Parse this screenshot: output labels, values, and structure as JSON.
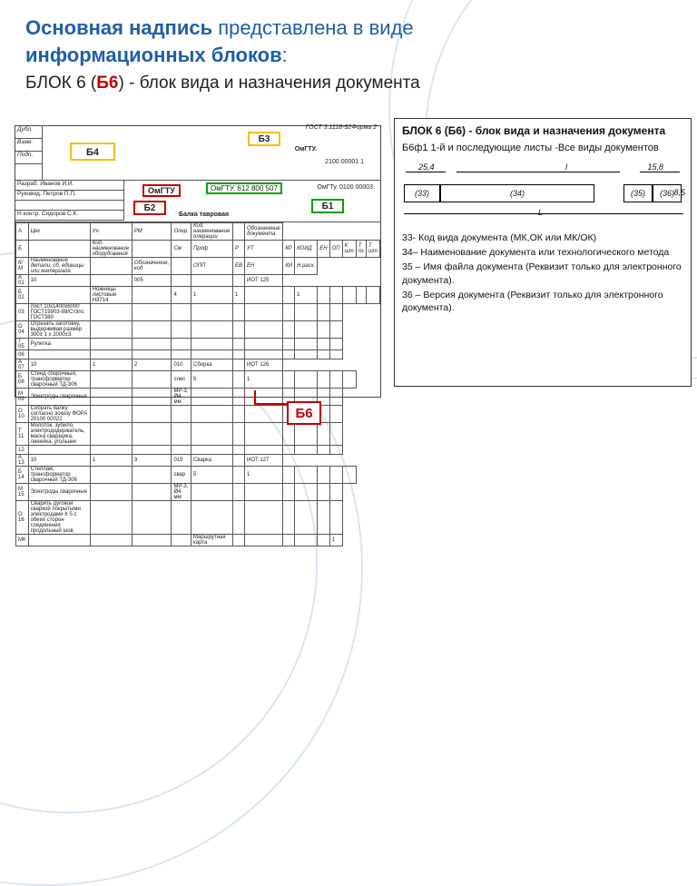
{
  "title": {
    "line1a": "Основная надпись",
    "line1b": " представлена в виде",
    "line2": "информационных блоков",
    "line3_prefix": "БЛОК 6 (",
    "line3_red": "Б6",
    "line3_suffix": ") - блок вида и назначения документа"
  },
  "colors": {
    "accent_blue": "#1f5fa8",
    "accent_red": "#c00000",
    "accent_green": "#00a000",
    "accent_yellow": "#f0c000",
    "swirl": "#b0d0e8"
  },
  "left_doc": {
    "gost": "ГОСТ 3.1118-92Форма 2",
    "stubs": [
      "Дубл.",
      "Взам.",
      "Подп."
    ],
    "b4": "Б4",
    "b3": "Б3",
    "b2": "Б2",
    "b1": "Б1",
    "top_num": "2100 00001   1",
    "names": [
      "Разраб.  Иванов И.И.",
      "Руковод. Петров П.П.",
      "",
      "Н.контр. Сидоров С.К."
    ],
    "omgtu1": "ОмГТУ",
    "omgtu2": "ОмГТУ. 612 800 507",
    "right_num": "ОмГТу. 0100 00003",
    "balka": "Балка тавровая",
    "header_row": [
      "А",
      "Цех",
      "Уч.",
      "РМ",
      "Опер.",
      "Код, наименование операции",
      "",
      "Обозначение документа"
    ],
    "header_row2": [
      "Б",
      "",
      "Код, наименование оборудования",
      "",
      "См",
      "Проф",
      "Р",
      "УТ",
      "КР",
      "КОИД",
      "ЕН",
      "ОП",
      "К шт",
      "Т пз",
      "Т шт"
    ],
    "km_row": [
      "К/М",
      "Наименование детали, сб. единицы или материала",
      "",
      "Обозначение, код",
      "",
      "ОПП",
      "ЕВ",
      "ЕН",
      "КИ",
      "Н.расх."
    ],
    "body_rows": [
      [
        "А 01",
        "10",
        "",
        "005",
        "",
        "",
        "",
        "ИОТ 125"
      ],
      [
        "Б 02",
        "",
        "Ножницы листовые Н3714",
        "",
        "4",
        "1",
        "1",
        "",
        "",
        "1",
        "",
        "",
        "",
        "",
        ""
      ],
      [
        "03",
        "Лист 10х1400х6000 ГОСТ19903-89/Ст3пс ГОСТ380",
        "",
        "",
        "",
        "",
        "",
        "",
        "",
        "",
        "",
        ""
      ],
      [
        "О 04",
        "Отрезать заготовку, выдерживая размер 300± 1 х 2000±3.",
        "",
        "",
        "",
        "",
        "",
        "",
        "",
        "",
        "",
        ""
      ],
      [
        "Т 05",
        "Рулетка",
        "",
        "",
        "",
        "",
        "",
        "",
        "",
        "",
        "",
        ""
      ],
      [
        "06",
        "",
        "",
        "",
        "",
        "",
        "",
        "",
        "",
        "",
        "",
        ""
      ],
      [
        "А 07",
        "10",
        "1",
        "2",
        "010",
        "Сборка",
        "",
        "ИОТ 126"
      ],
      [
        "Б 08",
        "Стенд сборочный, трансформатор сварочный ТД-306",
        "",
        "",
        "слес",
        "5",
        "",
        "1",
        "",
        "",
        "",
        "",
        ""
      ],
      [
        "М 09",
        "Электроды сварочные",
        "",
        "",
        "МР-3, Ø4 мм",
        "",
        "",
        "",
        "",
        "",
        "",
        ""
      ],
      [
        "О 10",
        "Собрать балку согласно эскизу ФОРА 20100 00022",
        "",
        "",
        "",
        "",
        "",
        "",
        "",
        "",
        "",
        ""
      ],
      [
        "Т 11",
        "Молоток, зубило, электрододержатель, маска сварщика, линейка, угольник",
        "",
        "",
        "",
        "",
        "",
        "",
        "",
        "",
        "",
        ""
      ],
      [
        "12",
        "",
        "",
        "",
        "",
        "",
        "",
        "",
        "",
        "",
        "",
        ""
      ],
      [
        "А 13",
        "10",
        "1",
        "3",
        "015",
        "Сварка",
        "",
        "ИОТ 127"
      ],
      [
        "Б 14",
        "Стеллаж, трансформатор сварочный ТД-306",
        "",
        "",
        "свар",
        "5",
        "",
        "1",
        "",
        "",
        "",
        "",
        ""
      ],
      [
        "М 15",
        "Электроды сварочные",
        "",
        "",
        "МР-3, Ø4 мм",
        "",
        "",
        "",
        "",
        "",
        "",
        ""
      ],
      [
        "О 16",
        "Сварить дуговой сваркой покрытыми электродами К 5 с обеих сторон соединения продольный шов",
        "",
        "",
        "",
        "",
        "",
        "",
        "",
        "",
        "",
        ""
      ],
      [
        "МК",
        "",
        "",
        "",
        "",
        "Маршрутная карта",
        "",
        "",
        "",
        "",
        "",
        "1"
      ]
    ]
  },
  "right_panel": {
    "header": "БЛОК 6 (Б6) - блок вида и назначения документа",
    "sub": "Б6ф1 1-й и последующие листы  -Все виды документов",
    "dims": {
      "d1": "25,4",
      "d2": "l",
      "d3": "15,8",
      "h": "8,5",
      "L": "L"
    },
    "cells": [
      "(33)",
      "(34)",
      "(35)",
      "(36)"
    ],
    "notes": [
      "33- Код вида документа  (МК,ОК или МК/ОК)",
      "34– Наименование документа  или технологического метода",
      "35 – Имя файла документа (Реквизит только для электронного  документа).",
      "36 – Версия документа  (Реквизит только для электронного документа)."
    ]
  },
  "b6_label": "Б6"
}
